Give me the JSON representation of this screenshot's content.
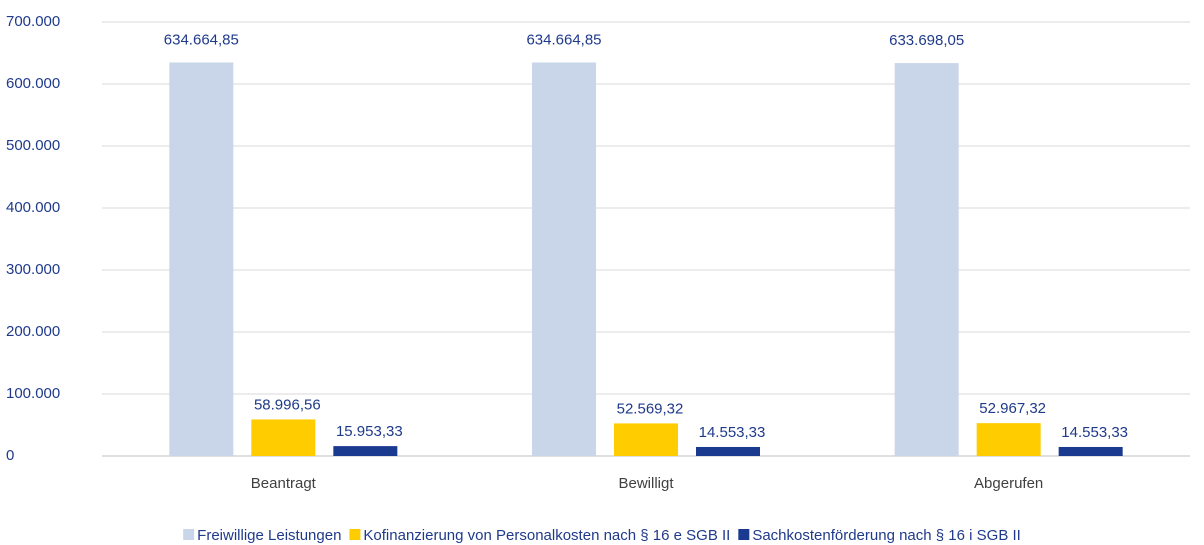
{
  "chart_data": {
    "type": "bar",
    "categories": [
      "Beantragt",
      "Bewilligt",
      "Abgerufen"
    ],
    "series": [
      {
        "name": "Freiwillige Leistungen",
        "color": "#c9d5e8",
        "values": [
          634664.85,
          634664.85,
          633698.05
        ],
        "value_labels": [
          "634.664,85",
          "634.664,85",
          "633.698,05"
        ]
      },
      {
        "name": "Kofinanzierung von Personalkosten nach § 16 e SGB II",
        "color": "#ffcc00",
        "values": [
          58996.56,
          52569.32,
          52967.32
        ],
        "value_labels": [
          "58.996,56",
          "52.569,32",
          "52.967,32"
        ]
      },
      {
        "name": "Sachkostenförderung nach § 16 i SGB II",
        "color": "#1a3a8f",
        "values": [
          15953.33,
          14553.33,
          14553.33
        ],
        "value_labels": [
          "15.953,33",
          "14.553,33",
          "14.553,33"
        ]
      }
    ],
    "ylim": [
      0,
      700000
    ],
    "yticks": [
      0,
      {
        "value": 100000,
        "label": "100.000"
      },
      {
        "value": 200000,
        "label": "200.000"
      },
      {
        "value": 300000,
        "label": "300.000"
      },
      {
        "value": 400000,
        "label": "400.000"
      },
      {
        "value": 500000,
        "label": "500.000"
      },
      {
        "value": 600000,
        "label": "600.000"
      },
      {
        "value": 700000,
        "label": "700.000"
      }
    ],
    "grid": true,
    "legend": "bottom"
  }
}
